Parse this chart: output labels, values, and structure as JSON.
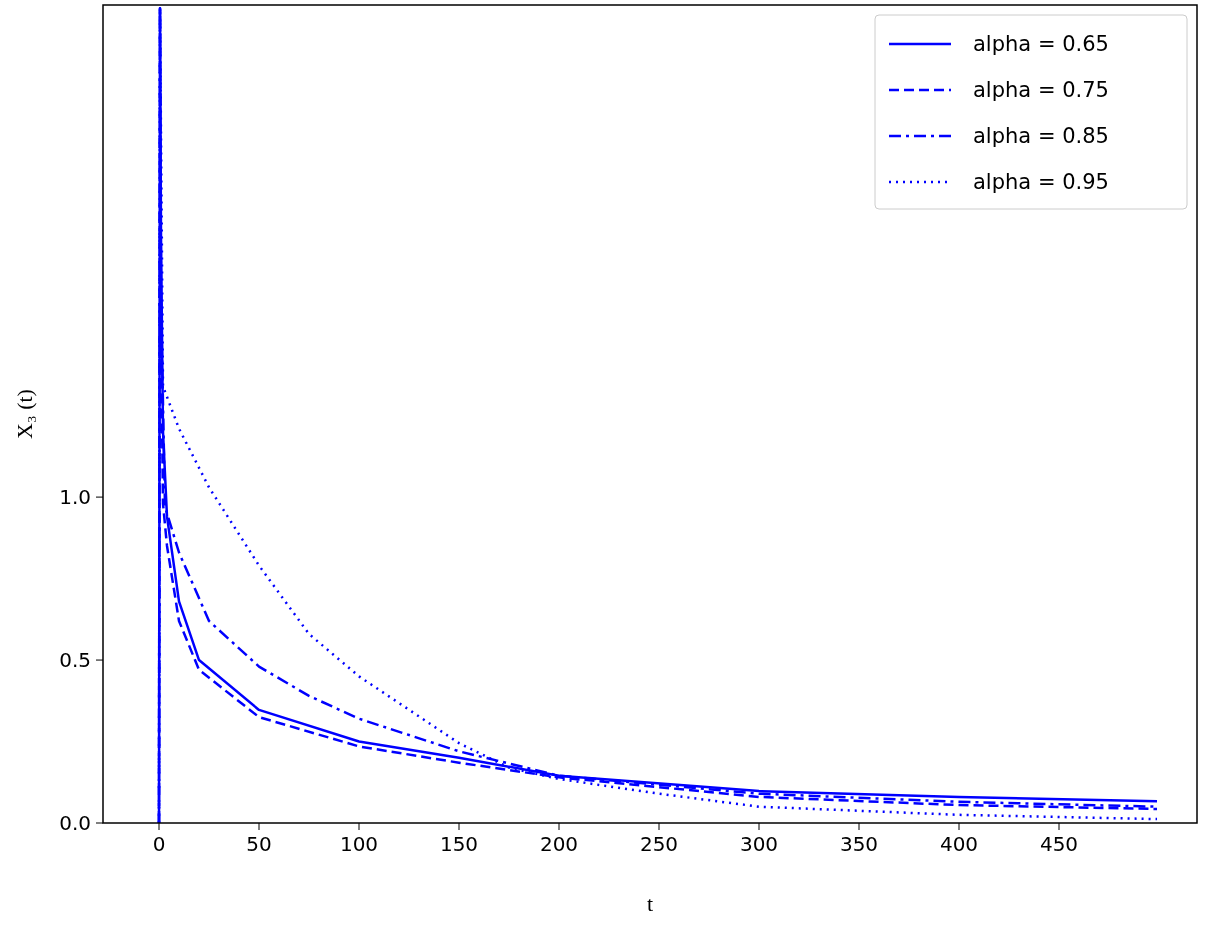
{
  "chart_data": {
    "type": "line",
    "xlabel": "t",
    "ylabel": "X₃ (t)",
    "xlim": [
      -28,
      519
    ],
    "ylim": [
      0,
      2.51
    ],
    "xticks": [
      0,
      50,
      100,
      150,
      200,
      250,
      300,
      350,
      400,
      450
    ],
    "yticks": [
      {
        "value": 0,
        "label": "0.0"
      },
      {
        "value": 0.5,
        "label": "0.5"
      },
      {
        "value": 1,
        "label": "1.0"
      }
    ],
    "legend": "top right",
    "grid": false,
    "marker": "none",
    "series": [
      {
        "name": "alpha = 0.65",
        "color": "#0000ff",
        "line_style": "solid",
        "x": [
          0,
          0.5,
          1,
          2,
          4,
          10,
          20,
          50,
          100,
          150,
          200,
          300,
          400,
          499
        ],
        "values": [
          0,
          2.5,
          1.8,
          1.2,
          0.94,
          0.68,
          0.5,
          0.347,
          0.25,
          0.2,
          0.145,
          0.098,
          0.08,
          0.067
        ]
      },
      {
        "name": "alpha = 0.75",
        "color": "#0000ff",
        "line_style": "dashed",
        "x": [
          0,
          0.5,
          1,
          2,
          4,
          10,
          20,
          50,
          100,
          150,
          200,
          300,
          400,
          499
        ],
        "values": [
          0,
          2.5,
          1.5,
          0.98,
          0.85,
          0.62,
          0.47,
          0.325,
          0.235,
          0.185,
          0.14,
          0.08,
          0.055,
          0.043
        ]
      },
      {
        "name": "alpha = 0.85",
        "color": "#0000ff",
        "line_style": "dashdot",
        "x": [
          0,
          0.5,
          1,
          3,
          10,
          25,
          50,
          75,
          100,
          150,
          200,
          300,
          400,
          499
        ],
        "values": [
          0,
          2.5,
          1.6,
          0.97,
          0.83,
          0.62,
          0.48,
          0.39,
          0.32,
          0.22,
          0.145,
          0.09,
          0.065,
          0.05
        ]
      },
      {
        "name": "alpha = 0.95",
        "color": "#0000ff",
        "line_style": "dotted",
        "x": [
          0,
          0.5,
          2,
          10,
          25,
          50,
          75,
          100,
          150,
          175,
          200,
          250,
          300,
          400,
          499
        ],
        "values": [
          0,
          2.5,
          1.34,
          1.21,
          1.03,
          0.79,
          0.58,
          0.45,
          0.245,
          0.17,
          0.135,
          0.09,
          0.05,
          0.025,
          0.012
        ]
      }
    ]
  }
}
